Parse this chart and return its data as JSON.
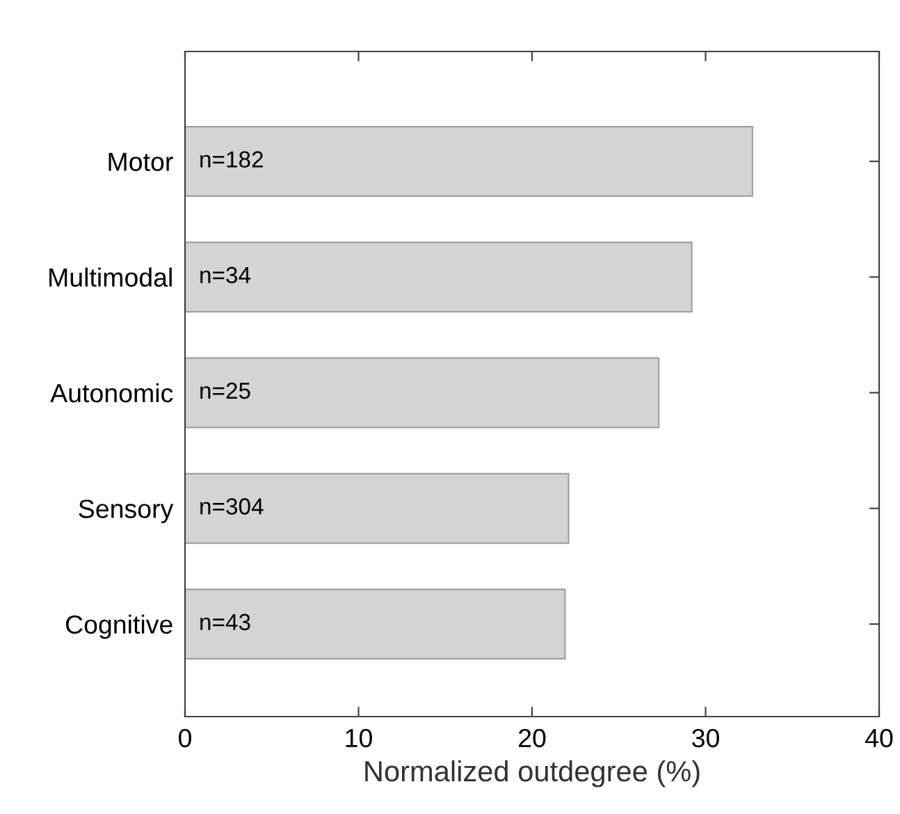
{
  "chart_data": {
    "type": "bar",
    "orientation": "horizontal",
    "xlabel": "Normalized outdegree (%)",
    "categories": [
      "Motor",
      "Multimodal",
      "Autonomic",
      "Sensory",
      "Cognitive"
    ],
    "values": [
      32.7,
      29.2,
      27.3,
      22.1,
      21.9
    ],
    "annotations": [
      "n=182",
      "n=34",
      "n=25",
      "n=304",
      "n=43"
    ],
    "color": "#d4d4d4",
    "xlim": [
      0,
      40
    ],
    "xticks": [
      0,
      10,
      20,
      30,
      40
    ],
    "grid": false,
    "legend": false
  }
}
